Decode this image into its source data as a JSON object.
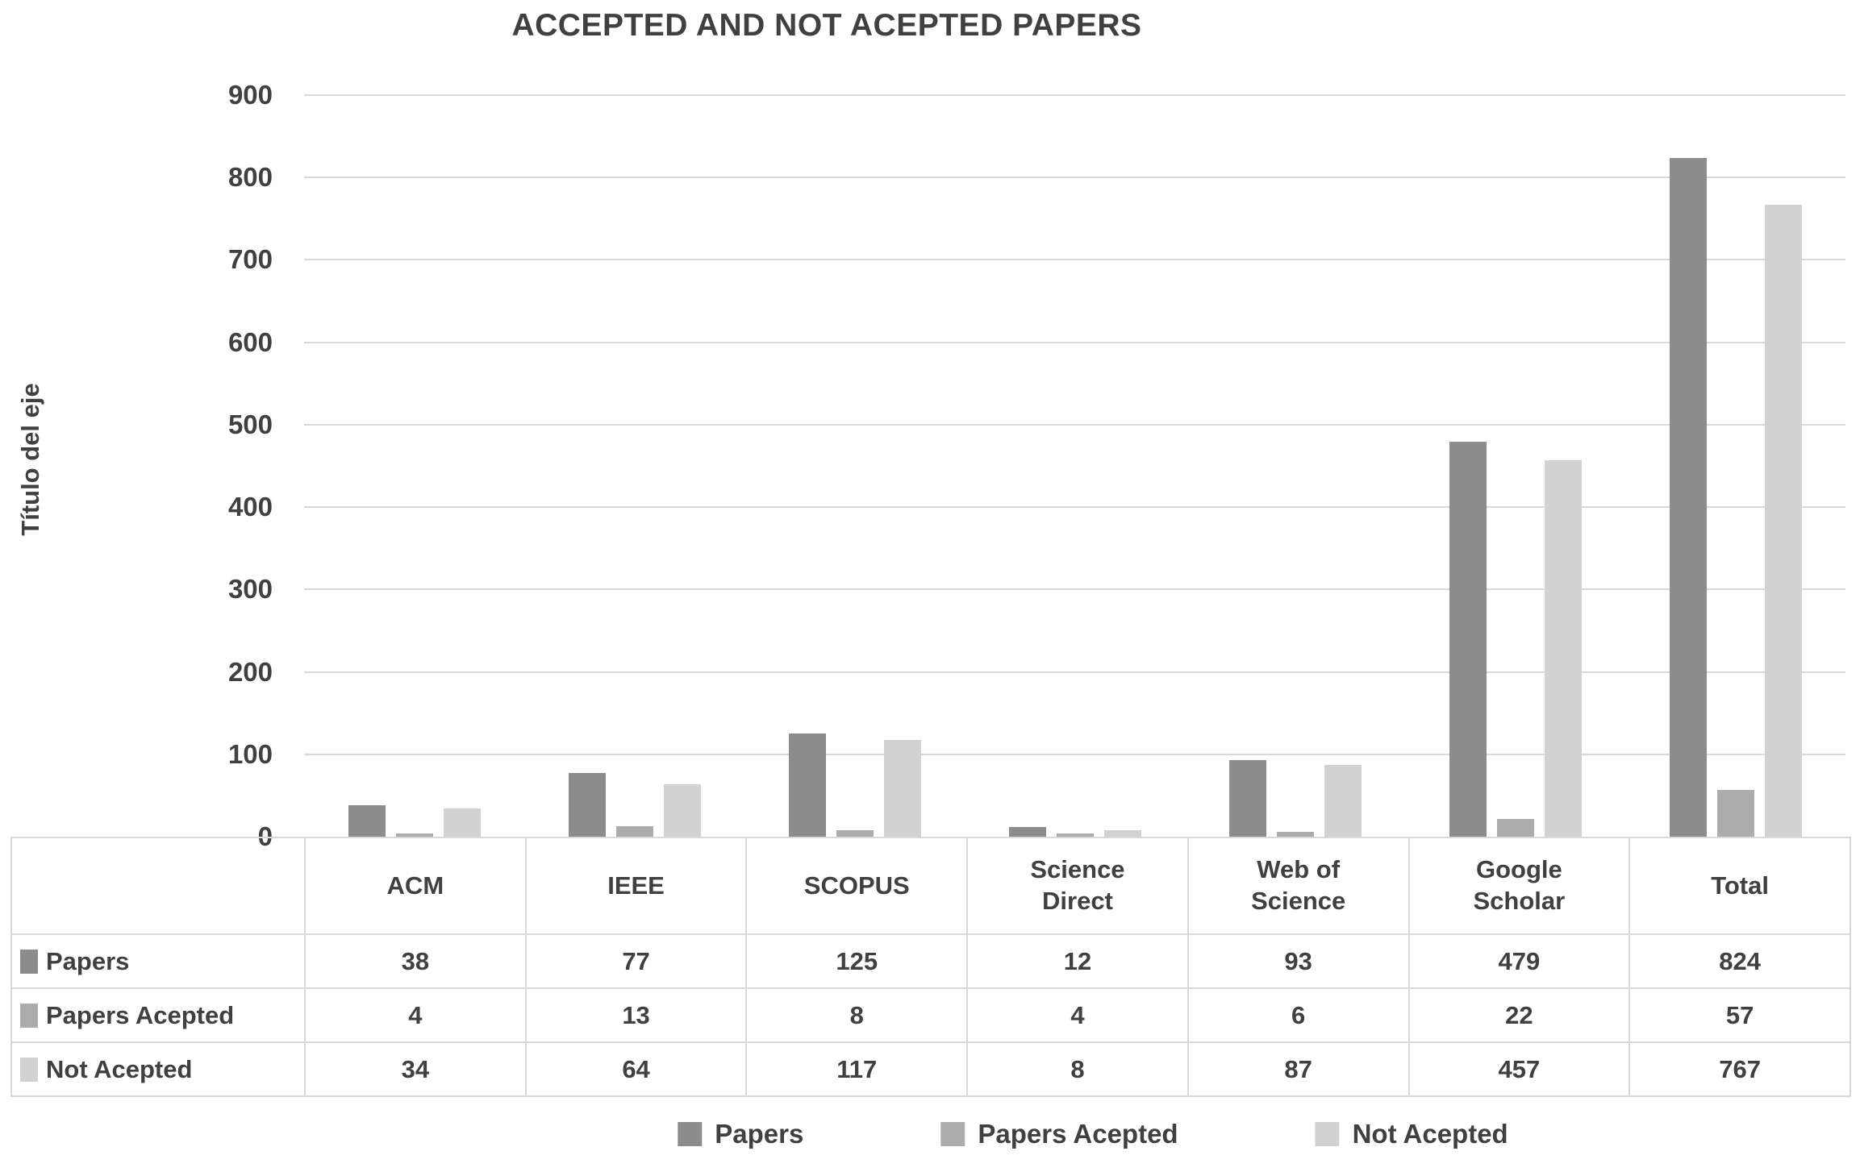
{
  "page": {
    "background": "#ffffff",
    "text_color": "#404040"
  },
  "chart_data": {
    "type": "bar",
    "title": "ACCEPTED AND NOT ACEPTED PAPERS",
    "xlabel": "",
    "ylabel": "Título del eje",
    "categories": [
      "ACM",
      "IEEE",
      "SCOPUS",
      "Science\nDirect",
      "Web of\nScience",
      "Google\nScholar",
      "Total"
    ],
    "series": [
      {
        "name": "Papers",
        "color": "#8C8C8C",
        "values": [
          38,
          77,
          125,
          12,
          93,
          479,
          824
        ]
      },
      {
        "name": "Papers Acepted",
        "color": "#ACACAC",
        "values": [
          4,
          13,
          8,
          4,
          6,
          22,
          57
        ]
      },
      {
        "name": "Not Acepted",
        "color": "#D2D2D2",
        "values": [
          34,
          64,
          117,
          8,
          87,
          457,
          767
        ]
      }
    ],
    "ylim": [
      0,
      900
    ],
    "yticks": [
      0,
      100,
      200,
      300,
      400,
      500,
      600,
      700,
      800,
      900
    ],
    "grid": true,
    "gridline_color": "#D9D9D9",
    "table_border_color": "#D9D9D9",
    "legend_position": "bottom",
    "data_table_shown": true
  }
}
